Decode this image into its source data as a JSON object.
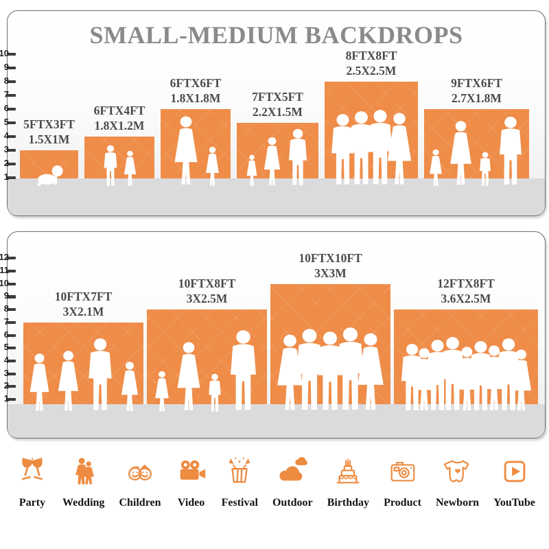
{
  "title": "SMALL-MEDIUM BACKDROPS",
  "accent_color": "#EE8C48",
  "label_color": "#4a4a4a",
  "panels": [
    {
      "name": "small-backdrops",
      "ruler_max": 10,
      "backdrops": [
        {
          "size_ft": "5FTX3FT",
          "size_m": "1.5X1M",
          "ft_w": 5,
          "ft_h": 3,
          "figures": [
            {
              "type": "baby",
              "h": 36
            }
          ]
        },
        {
          "size_ft": "6FTX4FT",
          "size_m": "1.8X1.2M",
          "ft_w": 6,
          "ft_h": 4,
          "figures": [
            {
              "type": "boy",
              "h": 62
            },
            {
              "type": "girl",
              "h": 54
            }
          ]
        },
        {
          "size_ft": "6FTX6FT",
          "size_m": "1.8X1.8M",
          "ft_w": 6,
          "ft_h": 6,
          "figures": [
            {
              "type": "woman",
              "h": 105
            },
            {
              "type": "girl",
              "h": 60
            }
          ]
        },
        {
          "size_ft": "7FTX5FT",
          "size_m": "2.2X1.5M",
          "ft_w": 7,
          "ft_h": 5,
          "figures": [
            {
              "type": "girl",
              "h": 48
            },
            {
              "type": "woman",
              "h": 74
            },
            {
              "type": "man",
              "h": 86
            }
          ]
        },
        {
          "size_ft": "8FTX8FT",
          "size_m": "2.5X2.5M",
          "ft_w": 8,
          "ft_h": 8,
          "figures": [
            {
              "type": "man",
              "h": 108
            },
            {
              "type": "man",
              "h": 112
            },
            {
              "type": "man",
              "h": 114
            },
            {
              "type": "woman",
              "h": 110
            }
          ]
        },
        {
          "size_ft": "9FTX6FT",
          "size_m": "2.7X1.8M",
          "ft_w": 9,
          "ft_h": 6,
          "figures": [
            {
              "type": "girl",
              "h": 56
            },
            {
              "type": "woman",
              "h": 98
            },
            {
              "type": "boy",
              "h": 52
            },
            {
              "type": "man",
              "h": 104
            }
          ]
        }
      ]
    },
    {
      "name": "medium-backdrops",
      "ruler_max": 12,
      "backdrops": [
        {
          "size_ft": "10FTX7FT",
          "size_m": "3X2.1M",
          "ft_w": 10,
          "ft_h": 7,
          "figures": [
            {
              "type": "woman",
              "h": 88
            },
            {
              "type": "woman",
              "h": 92
            },
            {
              "type": "man",
              "h": 110
            },
            {
              "type": "girl",
              "h": 76
            }
          ]
        },
        {
          "size_ft": "10FTX8FT",
          "size_m": "3X2.5M",
          "ft_w": 10,
          "ft_h": 8,
          "figures": [
            {
              "type": "girl",
              "h": 62
            },
            {
              "type": "woman",
              "h": 105
            },
            {
              "type": "boy",
              "h": 58
            },
            {
              "type": "man",
              "h": 122
            }
          ]
        },
        {
          "size_ft": "10FTX10FT",
          "size_m": "3X3M",
          "ft_w": 10,
          "ft_h": 10,
          "figures": [
            {
              "type": "woman",
              "h": 116
            },
            {
              "type": "man",
              "h": 124
            },
            {
              "type": "man",
              "h": 120
            },
            {
              "type": "man",
              "h": 126
            },
            {
              "type": "woman",
              "h": 118
            }
          ]
        },
        {
          "size_ft": "12FTX8FT",
          "size_m": "3.6X2.5M",
          "ft_w": 12,
          "ft_h": 8,
          "figures": [
            {
              "type": "man",
              "h": 102
            },
            {
              "type": "woman",
              "h": 96
            },
            {
              "type": "man",
              "h": 108
            },
            {
              "type": "man",
              "h": 112
            },
            {
              "type": "woman",
              "h": 98
            },
            {
              "type": "man",
              "h": 106
            },
            {
              "type": "woman",
              "h": 100
            },
            {
              "type": "man",
              "h": 110
            },
            {
              "type": "woman",
              "h": 94
            }
          ]
        }
      ]
    }
  ],
  "categories": [
    {
      "label": "Party",
      "icon": "party-icon"
    },
    {
      "label": "Wedding",
      "icon": "wedding-icon"
    },
    {
      "label": "Children",
      "icon": "children-icon"
    },
    {
      "label": "Video",
      "icon": "video-icon"
    },
    {
      "label": "Festival",
      "icon": "festival-icon"
    },
    {
      "label": "Outdoor",
      "icon": "outdoor-icon"
    },
    {
      "label": "Birthday",
      "icon": "birthday-icon"
    },
    {
      "label": "Product",
      "icon": "product-icon"
    },
    {
      "label": "Newborn",
      "icon": "newborn-icon"
    },
    {
      "label": "YouTube",
      "icon": "youtube-icon"
    }
  ]
}
